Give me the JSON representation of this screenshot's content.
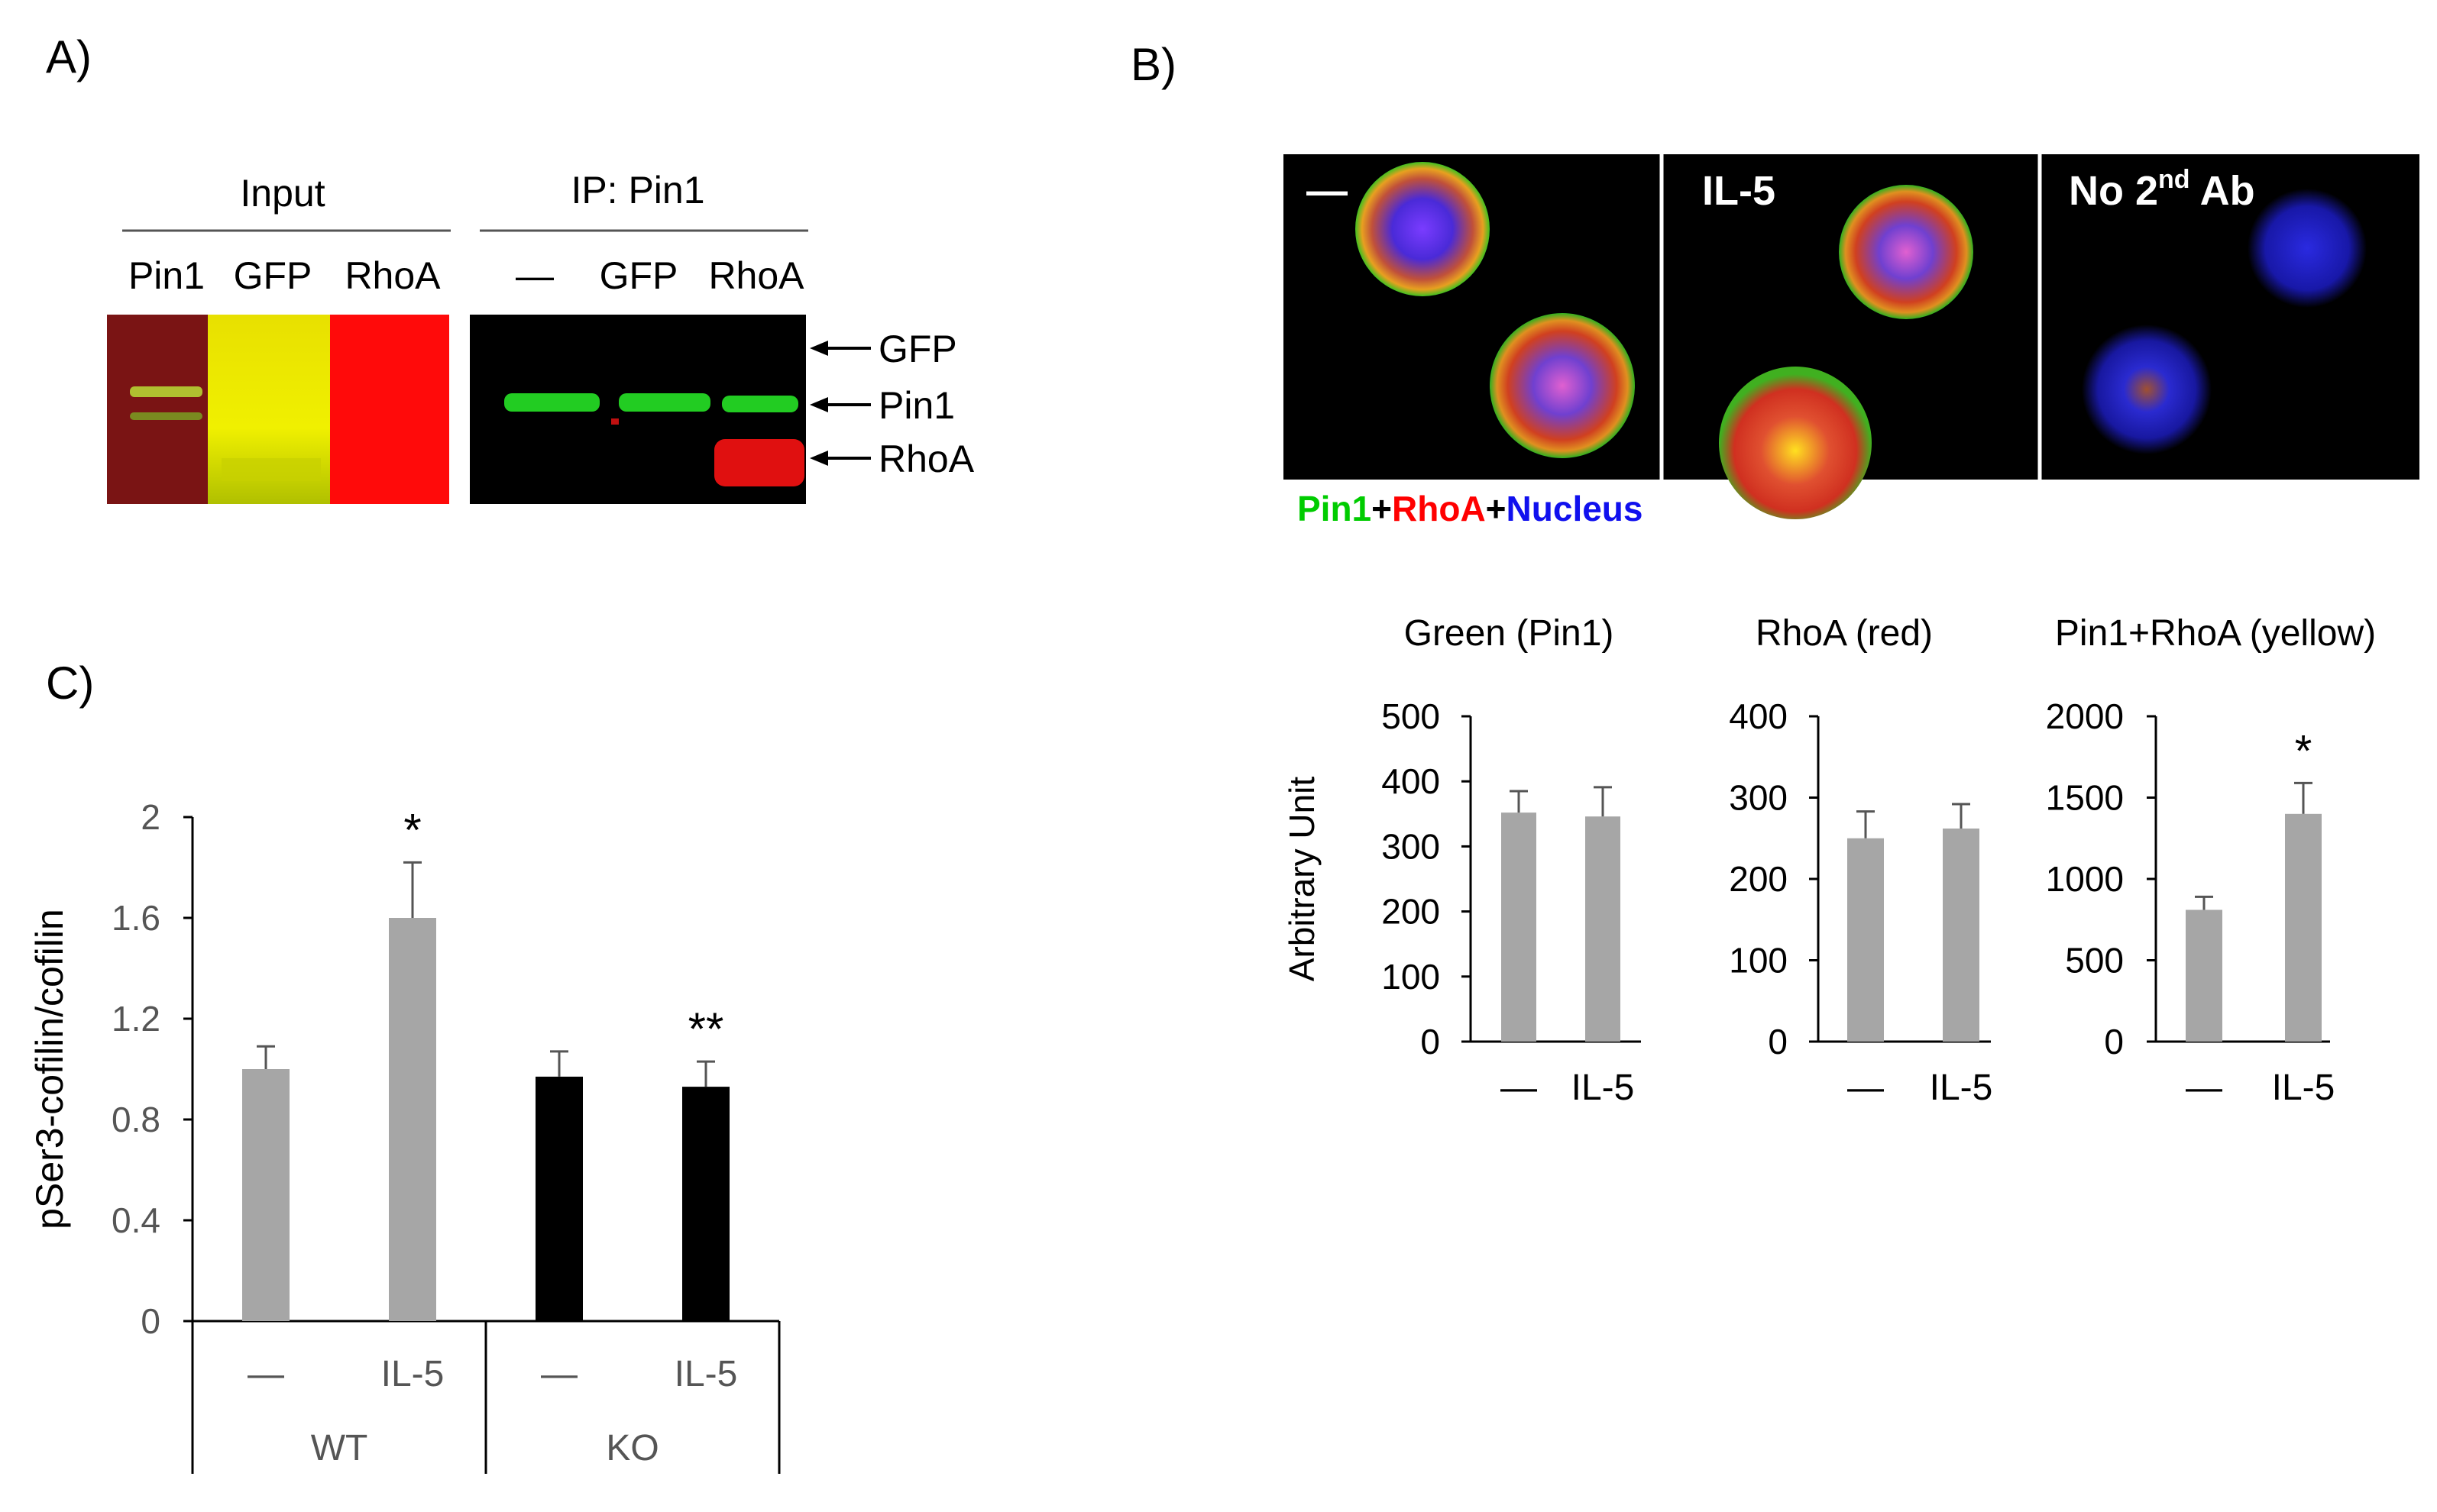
{
  "panel_a": {
    "letter": "A)",
    "input_title": "Input",
    "ip_title": "IP: Pin1",
    "input_lanes": [
      "Pin1",
      "GFP",
      "RhoA"
    ],
    "ip_lanes": [
      "—",
      "GFP",
      "RhoA"
    ],
    "arrows": [
      "GFP",
      "Pin1",
      "RhoA"
    ]
  },
  "panel_b": {
    "letter": "B)",
    "micro_labels": [
      "—",
      "IL-5",
      "No 2",
      "nd",
      " Ab"
    ],
    "legend": {
      "pin1": "Pin1",
      "plus1": "+",
      "rhoa": "RhoA",
      "plus2": "+",
      "nucleus": "Nucleus"
    },
    "colors": {
      "pin1": "#00cc00",
      "rhoa": "#ff0000",
      "nucleus": "#1010ee",
      "bar": "#a6a6a6"
    }
  },
  "panel_c": {
    "letter": "C)",
    "group_labels": [
      "WT",
      "KO"
    ],
    "star_wt": "*",
    "star_ko": "**"
  },
  "chart_data": [
    {
      "type": "bar",
      "title": "",
      "ylabel": "pSer3-cofilin/cofilin",
      "ylim": [
        0,
        2
      ],
      "yticks": [
        "0",
        "0.4",
        "0.8",
        "1.2",
        "1.6",
        "2"
      ],
      "categories": [
        "—",
        "IL-5",
        "—",
        "IL-5"
      ],
      "groups": [
        "WT",
        "WT",
        "KO",
        "KO"
      ],
      "values": [
        1.0,
        1.6,
        0.97,
        0.93
      ],
      "errors": [
        0.09,
        0.22,
        0.1,
        0.1
      ],
      "bar_colors": [
        "#a6a6a6",
        "#a6a6a6",
        "#000000",
        "#000000"
      ],
      "annotations": [
        "",
        "*",
        "",
        "**"
      ]
    },
    {
      "type": "bar",
      "title": "Green (Pin1)",
      "ylabel": "Arbitrary Unit",
      "ylim": [
        0,
        500
      ],
      "yticks": [
        "0",
        "100",
        "200",
        "300",
        "400",
        "500"
      ],
      "categories": [
        "—",
        "IL-5"
      ],
      "values": [
        352,
        346
      ],
      "errors": [
        33,
        45
      ],
      "annotations": [
        "",
        ""
      ]
    },
    {
      "type": "bar",
      "title": "RhoA (red)",
      "ylabel": "",
      "ylim": [
        0,
        400
      ],
      "yticks": [
        "0",
        "100",
        "200",
        "300",
        "400"
      ],
      "categories": [
        "—",
        "IL-5"
      ],
      "values": [
        250,
        262
      ],
      "errors": [
        33,
        30
      ],
      "annotations": [
        "",
        ""
      ]
    },
    {
      "type": "bar",
      "title": "Pin1+RhoA (yellow)",
      "ylabel": "",
      "ylim": [
        0,
        2000
      ],
      "yticks": [
        "0",
        "500",
        "1000",
        "1500",
        "2000"
      ],
      "categories": [
        "—",
        "IL-5"
      ],
      "values": [
        810,
        1400
      ],
      "errors": [
        80,
        190
      ],
      "annotations": [
        "",
        "*"
      ]
    }
  ]
}
